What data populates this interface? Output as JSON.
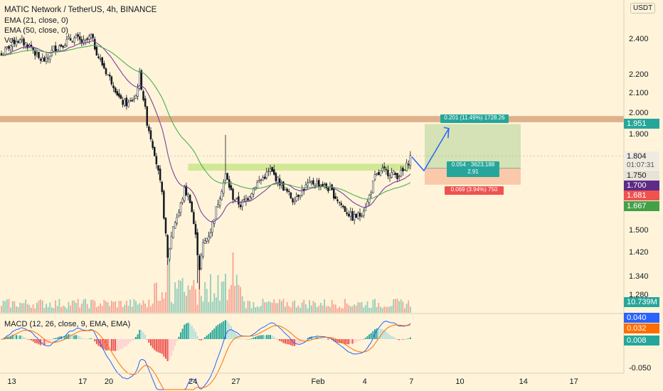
{
  "header": {
    "symbol": "MATIC Network / TetherUS, 4h, BINANCE",
    "ema21": "EMA (21, close, 0)",
    "ema50": "EMA (50, close, 0)",
    "vol": "Vol",
    "macd": "MACD (12, 26, close, 9, EMA, EMA)"
  },
  "price_axis": {
    "currency_button": "USDT",
    "top_value": "2",
    "labels": [
      "2.400",
      "2.200",
      "2.100",
      "2.000",
      "1.900",
      "1.500",
      "1.420",
      "1.340",
      "1.280"
    ],
    "macd_labels": [
      "-0.050"
    ]
  },
  "badges": {
    "target": "1.951",
    "last": "1.804",
    "countdown": "01:07:31",
    "entry_gray": "1.750",
    "ema_purple": "1.700",
    "stop_red": "1.681",
    "ema_green": "1.667",
    "volume": "10.739M",
    "macd_blue": "0.040",
    "macd_orange": "0.032",
    "macd_hist": "0.008"
  },
  "position_tool": {
    "target_label": "0.201 (11.49%) 1728.26",
    "entry_label_1": "0.054 · 3623.188",
    "entry_label_2": "2.91",
    "stop_label": "0.069 (3.94%) 750"
  },
  "time_axis": [
    "13",
    "17",
    "20",
    "24",
    "27",
    "Feb",
    "4",
    "7",
    "10",
    "14",
    "17"
  ],
  "colors": {
    "background": "#FFF4D9",
    "up": "#26a69a",
    "down": "#ef5350",
    "candle": "#131722",
    "ema21": "#7b3fa0",
    "ema50": "#4caf50",
    "resistance_zone": "#d9a67e",
    "support_zone": "#c9e58a",
    "target_zone": "#cfe0b0",
    "stop_zone": "#f8c4a4",
    "projection_arrow": "#2962ff"
  },
  "chart_data": {
    "type": "candlestick",
    "title": "MATIC Network / TetherUS, 4h, BINANCE",
    "timeframe": "4h",
    "x_tick_labels": [
      "13",
      "17",
      "20",
      "24",
      "27",
      "Feb",
      "4",
      "7",
      "10",
      "14",
      "17"
    ],
    "price_range": [
      1.26,
      2.55
    ],
    "price_scale": "log",
    "keyframes_close": [
      [
        0,
        2.31
      ],
      [
        4,
        2.36
      ],
      [
        8,
        2.4
      ],
      [
        12,
        2.38
      ],
      [
        16,
        2.36
      ],
      [
        20,
        2.29
      ],
      [
        24,
        2.28
      ],
      [
        28,
        2.35
      ],
      [
        32,
        2.37
      ],
      [
        36,
        2.4
      ],
      [
        40,
        2.41
      ],
      [
        44,
        2.38
      ],
      [
        48,
        2.42
      ],
      [
        52,
        2.3
      ],
      [
        56,
        2.22
      ],
      [
        60,
        2.15
      ],
      [
        64,
        2.06
      ],
      [
        68,
        2.05
      ],
      [
        72,
        2.09
      ],
      [
        74,
        2.2
      ],
      [
        78,
        1.96
      ],
      [
        82,
        1.82
      ],
      [
        86,
        1.64
      ],
      [
        89,
        1.4
      ],
      [
        92,
        1.52
      ],
      [
        95,
        1.57
      ],
      [
        98,
        1.66
      ],
      [
        101,
        1.62
      ],
      [
        104,
        1.48
      ],
      [
        106,
        1.37
      ],
      [
        108,
        1.45
      ],
      [
        112,
        1.5
      ],
      [
        116,
        1.61
      ],
      [
        120,
        1.72
      ],
      [
        124,
        1.63
      ],
      [
        128,
        1.6
      ],
      [
        132,
        1.63
      ],
      [
        136,
        1.68
      ],
      [
        140,
        1.71
      ],
      [
        144,
        1.74
      ],
      [
        148,
        1.7
      ],
      [
        152,
        1.66
      ],
      [
        156,
        1.62
      ],
      [
        160,
        1.65
      ],
      [
        164,
        1.68
      ],
      [
        168,
        1.69
      ],
      [
        172,
        1.68
      ],
      [
        176,
        1.66
      ],
      [
        180,
        1.62
      ],
      [
        184,
        1.58
      ],
      [
        188,
        1.55
      ],
      [
        192,
        1.56
      ],
      [
        196,
        1.61
      ],
      [
        200,
        1.71
      ],
      [
        204,
        1.74
      ],
      [
        208,
        1.73
      ],
      [
        212,
        1.72
      ],
      [
        216,
        1.74
      ],
      [
        219,
        1.8
      ]
    ],
    "series": [
      {
        "name": "EMA (21, close, 0)",
        "indicator": "EMA",
        "length": 21
      },
      {
        "name": "EMA (50, close, 0)",
        "indicator": "EMA",
        "length": 50
      },
      {
        "name": "Vol",
        "indicator": "volume",
        "last": "10.739M"
      },
      {
        "name": "MACD (12, 26, close, 9, EMA, EMA)",
        "indicator": "MACD",
        "macd": 0.04,
        "signal": 0.032,
        "histogram": 0.008
      }
    ],
    "last_price": 1.804,
    "levels": {
      "resistance_zone": [
        1.96,
        1.99
      ],
      "support_zone": [
        1.74,
        1.77
      ],
      "target": 1.951,
      "entry": 1.75,
      "stop": 1.681
    }
  }
}
